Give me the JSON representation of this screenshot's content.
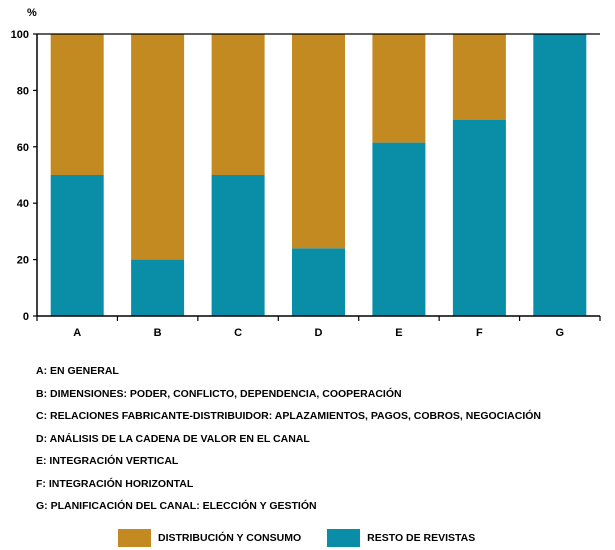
{
  "colors": {
    "distribucion": "#C48A22",
    "resto": "#0A8DA6",
    "axis": "#000000",
    "grid": "#000000"
  },
  "chart_data": {
    "type": "bar",
    "stacked": true,
    "percent": true,
    "ylabel": "%",
    "ylim": [
      0,
      100
    ],
    "yticks": [
      0,
      20,
      40,
      60,
      80,
      100
    ],
    "grid": false,
    "legend_position": "bottom",
    "categories": [
      "A",
      "B",
      "C",
      "D",
      "E",
      "F",
      "G"
    ],
    "series": [
      {
        "name": "RESTO DE REVISTAS",
        "color": "#0A8DA6",
        "values": [
          50,
          20,
          50,
          24,
          61.5,
          69.5,
          100
        ]
      },
      {
        "name": "DISTRIBUCIÓN Y CONSUMO",
        "color": "#C48A22",
        "values": [
          50,
          80,
          50,
          76,
          38.5,
          30.5,
          0
        ]
      }
    ]
  },
  "notes": [
    "A: EN GENERAL",
    "B: DIMENSIONES: PODER, CONFLICTO, DEPENDENCIA, COOPERACIÓN",
    "C: RELACIONES FABRICANTE-DISTRIBUIDOR: APLAZAMIENTOS, PAGOS, COBROS, NEGOCIACIÓN",
    "D: ANÁLISIS DE LA CADENA DE VALOR EN EL CANAL",
    "E: INTEGRACIÓN VERTICAL",
    "F: INTEGRACIÓN HORIZONTAL",
    "G: PLANIFICACIÓN DEL CANAL: ELECCIÓN Y GESTIÓN"
  ],
  "legend": [
    {
      "label": "DISTRIBUCIÓN Y CONSUMO",
      "color": "#C48A22"
    },
    {
      "label": "RESTO DE REVISTAS",
      "color": "#0A8DA6"
    }
  ]
}
